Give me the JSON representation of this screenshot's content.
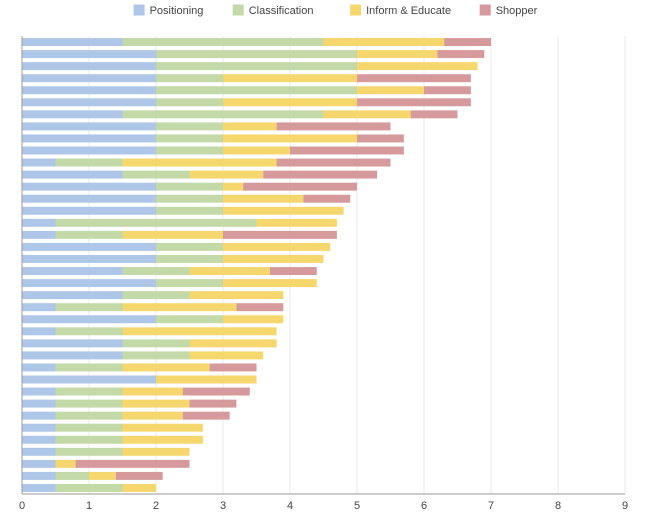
{
  "chart_data": {
    "type": "bar",
    "orientation": "horizontal",
    "stacked": true,
    "title": "",
    "xlabel": "",
    "ylabel": "",
    "xlim": [
      0,
      9
    ],
    "x_ticks": [
      "0",
      "1",
      "2",
      "3",
      "4",
      "5",
      "6",
      "7",
      "8",
      "9"
    ],
    "grid": "vertical",
    "legend_position": "top-center",
    "colors": [
      "#aec6e8",
      "#c3d9a8",
      "#f5d76e",
      "#d69a9c"
    ],
    "series": [
      {
        "name": "Positioning",
        "values": [
          1.5,
          2,
          2,
          2,
          2,
          2,
          1.5,
          2,
          2,
          2,
          0.5,
          1.5,
          2,
          2,
          2,
          0.5,
          0.5,
          2,
          2,
          1.5,
          2,
          1.5,
          0.5,
          2,
          0.5,
          1.5,
          1.5,
          0.5,
          2,
          0.5,
          0.5,
          0.5,
          0.5,
          0.5,
          0.5,
          0.5,
          0.5,
          0.5
        ]
      },
      {
        "name": "Classification",
        "values": [
          3,
          3,
          3,
          1,
          3,
          1,
          3,
          1,
          1,
          1,
          1,
          1,
          1,
          1,
          1,
          3,
          1,
          1,
          1,
          1,
          1,
          1,
          1,
          1,
          1,
          1,
          1,
          1,
          0,
          1,
          1,
          1,
          1,
          1,
          1,
          0,
          0.5,
          1
        ]
      },
      {
        "name": "Inform & Educate",
        "values": [
          1.8,
          1.2,
          1.8,
          2,
          1,
          2,
          1.3,
          0.8,
          2,
          1,
          2.3,
          1.1,
          0.3,
          1.2,
          1.8,
          1.2,
          1.5,
          1.6,
          1.5,
          1.2,
          1.4,
          1.4,
          1.7,
          0.9,
          2.3,
          1.3,
          1.1,
          1.3,
          1.5,
          0.9,
          1,
          0.9,
          1.2,
          1.2,
          1,
          0.3,
          0.4,
          0.5
        ]
      },
      {
        "name": "Shopper",
        "values": [
          0.7,
          0.7,
          0,
          1.7,
          0.7,
          1.7,
          0.7,
          1.7,
          0.7,
          1.7,
          1.7,
          1.7,
          1.7,
          0.7,
          0,
          0,
          1.7,
          0,
          0,
          0.7,
          0,
          0,
          0.7,
          0,
          0,
          0,
          0,
          0.7,
          0,
          1,
          0.7,
          0.7,
          0,
          0,
          0,
          1.7,
          0.7,
          0
        ]
      }
    ]
  }
}
